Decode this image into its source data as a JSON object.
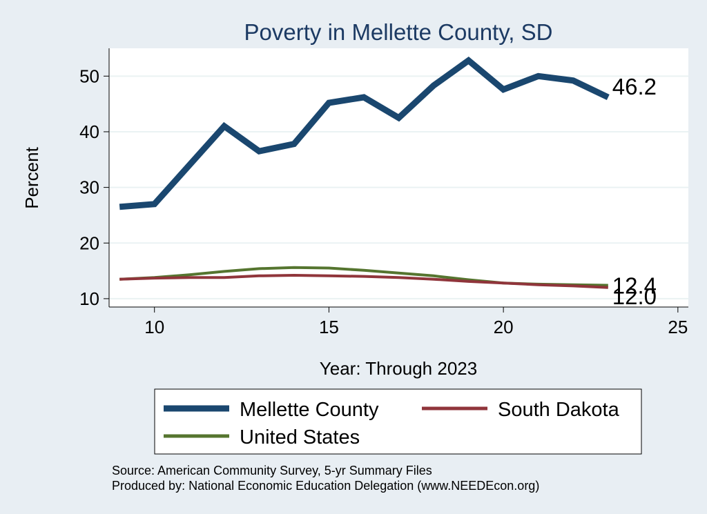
{
  "chart_data": {
    "type": "line",
    "title": "Poverty in Mellette County, SD",
    "xlabel": "Year: Through 2023",
    "ylabel": "Percent",
    "xlim": [
      8.7,
      25.3
    ],
    "ylim": [
      8.5,
      55
    ],
    "xticks": [
      10,
      15,
      20,
      25
    ],
    "yticks": [
      10,
      20,
      30,
      40,
      50
    ],
    "grid": true,
    "series": [
      {
        "name": "Mellette County",
        "color": "#1a476f",
        "x": [
          9,
          10,
          11,
          12,
          13,
          14,
          15,
          16,
          17,
          18,
          19,
          20,
          21,
          22,
          23
        ],
        "values": [
          26.5,
          27.0,
          34.0,
          41.0,
          36.5,
          37.8,
          45.2,
          46.2,
          42.5,
          48.3,
          52.8,
          47.6,
          50.0,
          49.2,
          46.2
        ],
        "end_label": "46.2"
      },
      {
        "name": "South Dakota",
        "color": "#90353b",
        "x": [
          9,
          10,
          11,
          12,
          13,
          14,
          15,
          16,
          17,
          18,
          19,
          20,
          21,
          22,
          23
        ],
        "values": [
          13.5,
          13.7,
          13.8,
          13.8,
          14.1,
          14.2,
          14.1,
          14.0,
          13.8,
          13.5,
          13.1,
          12.8,
          12.5,
          12.3,
          12.0
        ],
        "end_label": "12.0"
      },
      {
        "name": "United States",
        "color": "#55752f",
        "x": [
          9,
          10,
          11,
          12,
          13,
          14,
          15,
          16,
          17,
          18,
          19,
          20,
          21,
          22,
          23
        ],
        "values": [
          13.5,
          13.8,
          14.3,
          14.9,
          15.4,
          15.6,
          15.5,
          15.1,
          14.6,
          14.1,
          13.4,
          12.8,
          12.6,
          12.5,
          12.4
        ],
        "end_label": "12.4"
      }
    ],
    "legend": {
      "position": "bottom",
      "entries": [
        "Mellette County",
        "South Dakota",
        "United States"
      ]
    },
    "notes": [
      "Source: American Community Survey, 5-yr Summary Files",
      "Produced by: National Economic Education Delegation (www.NEEDEcon.org)"
    ]
  }
}
